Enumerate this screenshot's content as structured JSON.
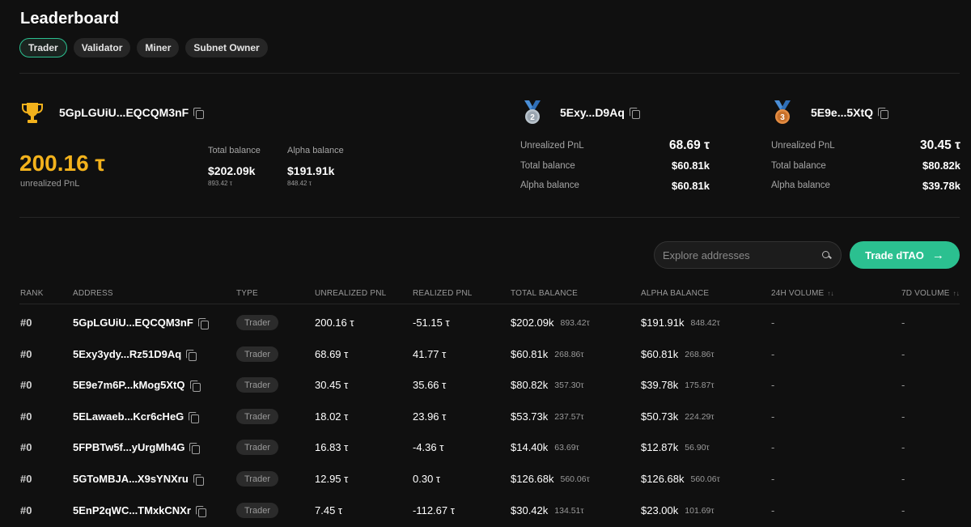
{
  "page": {
    "title": "Leaderboard"
  },
  "tabs": [
    {
      "label": "Trader",
      "active": true
    },
    {
      "label": "Validator",
      "active": false
    },
    {
      "label": "Miner",
      "active": false
    },
    {
      "label": "Subnet Owner",
      "active": false
    }
  ],
  "colors": {
    "accent": "#2bc090",
    "gold": "#f3b21c",
    "silver": "#b9c3cc",
    "bronze": "#d97e3a"
  },
  "top": {
    "first": {
      "icon": "trophy-icon",
      "address": "5GpLGUiU...EQCQM3nF",
      "pnl": "200.16 τ",
      "pnl_label": "unrealized PnL",
      "total_balance_label": "Total balance",
      "total_balance": "$202.09k",
      "total_balance_tau": "893.42 τ",
      "alpha_balance_label": "Alpha balance",
      "alpha_balance": "$191.91k",
      "alpha_balance_tau": "848.42 τ"
    },
    "second": {
      "icon": "medal-2-icon",
      "medal": "2",
      "address": "5Exy...D9Aq",
      "unrealized_label": "Unrealized PnL",
      "unrealized": "68.69 τ",
      "total_label": "Total balance",
      "total": "$60.81k",
      "alpha_label": "Alpha balance",
      "alpha": "$60.81k"
    },
    "third": {
      "icon": "medal-3-icon",
      "medal": "3",
      "address": "5E9e...5XtQ",
      "unrealized_label": "Unrealized PnL",
      "unrealized": "30.45 τ",
      "total_label": "Total balance",
      "total": "$80.82k",
      "alpha_label": "Alpha balance",
      "alpha": "$39.78k"
    }
  },
  "search": {
    "placeholder": "Explore addresses"
  },
  "trade_button": {
    "label": "Trade dTAO",
    "icon": "arrow-right-icon"
  },
  "table": {
    "columns": {
      "rank": "RANK",
      "address": "ADDRESS",
      "type": "TYPE",
      "unrealized": "UNREALIZED PNL",
      "realized": "REALIZED PNL",
      "total": "TOTAL BALANCE",
      "alpha": "ALPHA BALANCE",
      "vol24": "24H VOLUME",
      "vol7": "7D VOLUME"
    },
    "rows": [
      {
        "rank": "#0",
        "address": "5GpLGUiU...EQCQM3nF",
        "type": "Trader",
        "unrealized": "200.16 τ",
        "realized": "-51.15 τ",
        "total": "$202.09k",
        "total_tau": "893.42τ",
        "alpha": "$191.91k",
        "alpha_tau": "848.42τ",
        "vol24": "-",
        "vol7": "-"
      },
      {
        "rank": "#0",
        "address": "5Exy3ydy...Rz51D9Aq",
        "type": "Trader",
        "unrealized": "68.69 τ",
        "realized": "41.77 τ",
        "total": "$60.81k",
        "total_tau": "268.86τ",
        "alpha": "$60.81k",
        "alpha_tau": "268.86τ",
        "vol24": "-",
        "vol7": "-"
      },
      {
        "rank": "#0",
        "address": "5E9e7m6P...kMog5XtQ",
        "type": "Trader",
        "unrealized": "30.45 τ",
        "realized": "35.66 τ",
        "total": "$80.82k",
        "total_tau": "357.30τ",
        "alpha": "$39.78k",
        "alpha_tau": "175.87τ",
        "vol24": "-",
        "vol7": "-"
      },
      {
        "rank": "#0",
        "address": "5ELawaeb...Kcr6cHeG",
        "type": "Trader",
        "unrealized": "18.02 τ",
        "realized": "23.96 τ",
        "total": "$53.73k",
        "total_tau": "237.57τ",
        "alpha": "$50.73k",
        "alpha_tau": "224.29τ",
        "vol24": "-",
        "vol7": "-"
      },
      {
        "rank": "#0",
        "address": "5FPBTw5f...yUrgMh4G",
        "type": "Trader",
        "unrealized": "16.83 τ",
        "realized": "-4.36 τ",
        "total": "$14.40k",
        "total_tau": "63.69τ",
        "alpha": "$12.87k",
        "alpha_tau": "56.90τ",
        "vol24": "-",
        "vol7": "-"
      },
      {
        "rank": "#0",
        "address": "5GToMBJA...X9sYNXru",
        "type": "Trader",
        "unrealized": "12.95 τ",
        "realized": "0.30 τ",
        "total": "$126.68k",
        "total_tau": "560.06τ",
        "alpha": "$126.68k",
        "alpha_tau": "560.06τ",
        "vol24": "-",
        "vol7": "-"
      },
      {
        "rank": "#0",
        "address": "5EnP2qWC...TMxkCNXr",
        "type": "Trader",
        "unrealized": "7.45 τ",
        "realized": "-112.67 τ",
        "total": "$30.42k",
        "total_tau": "134.51τ",
        "alpha": "$23.00k",
        "alpha_tau": "101.69τ",
        "vol24": "-",
        "vol7": "-"
      }
    ]
  }
}
